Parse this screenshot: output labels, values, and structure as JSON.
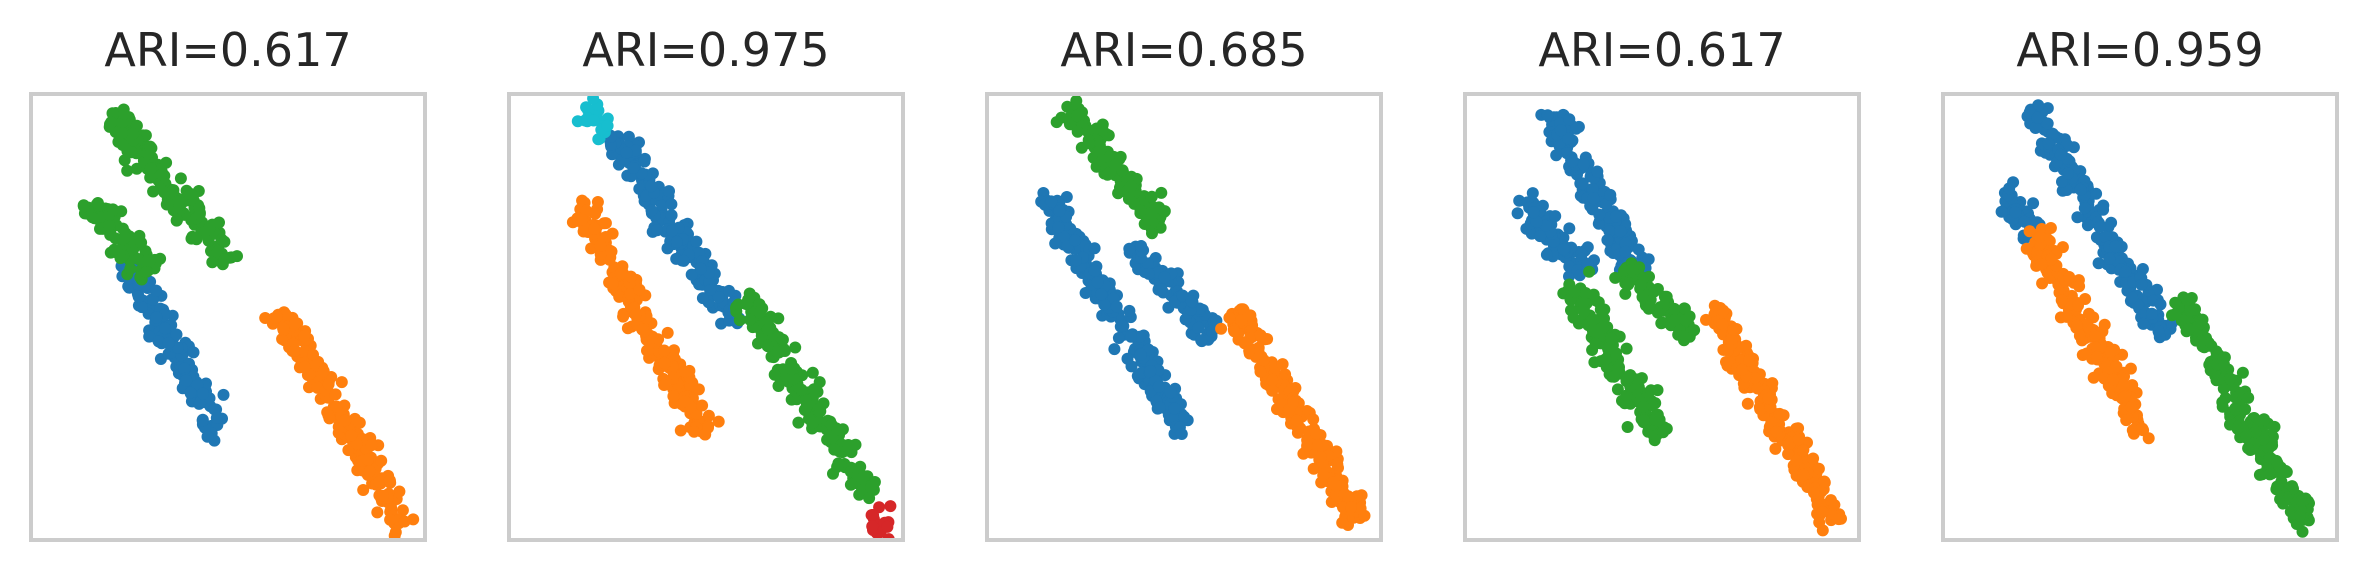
{
  "chart_data": [
    {
      "type": "scatter",
      "title": "ARI=0.617",
      "xlabel": "",
      "ylabel": "",
      "xlim": [
        0,
        1
      ],
      "ylim": [
        0,
        1
      ],
      "grid": false,
      "legend": "none",
      "ticks": "none",
      "series": [
        {
          "color": "#1f77b4",
          "segments": [
            [
              0.24,
              0.62,
              0.48,
              0.22
            ]
          ]
        },
        {
          "color": "#ff7f0e",
          "segments": [
            [
              0.63,
              0.52,
              0.96,
              0.02
            ]
          ]
        },
        {
          "color": "#2ca02c",
          "segments": [
            [
              0.2,
              0.97,
              0.5,
              0.62
            ],
            [
              0.14,
              0.77,
              0.3,
              0.6
            ]
          ]
        }
      ]
    },
    {
      "type": "scatter",
      "title": "ARI=0.975",
      "xlabel": "",
      "ylabel": "",
      "xlim": [
        0,
        1
      ],
      "ylim": [
        0,
        1
      ],
      "grid": false,
      "legend": "none",
      "ticks": "none",
      "series": [
        {
          "color": "#1f77b4",
          "segments": [
            [
              0.26,
              0.92,
              0.58,
              0.48
            ]
          ]
        },
        {
          "color": "#ff7f0e",
          "segments": [
            [
              0.17,
              0.76,
              0.5,
              0.23
            ]
          ]
        },
        {
          "color": "#2ca02c",
          "segments": [
            [
              0.6,
              0.54,
              0.93,
              0.09
            ]
          ]
        },
        {
          "color": "#d62728",
          "segments": [
            [
              0.93,
              0.03,
              0.98,
              0.02
            ]
          ]
        },
        {
          "color": "#17becf",
          "segments": [
            [
              0.18,
              0.97,
              0.24,
              0.94
            ]
          ]
        }
      ]
    },
    {
      "type": "scatter",
      "title": "ARI=0.685",
      "xlabel": "",
      "ylabel": "",
      "xlim": [
        0,
        1
      ],
      "ylim": [
        0,
        1
      ],
      "grid": false,
      "legend": "none",
      "ticks": "none",
      "series": [
        {
          "color": "#1f77b4",
          "segments": [
            [
              0.14,
              0.78,
              0.5,
              0.24
            ],
            [
              0.36,
              0.66,
              0.58,
              0.46
            ]
          ]
        },
        {
          "color": "#ff7f0e",
          "segments": [
            [
              0.63,
              0.52,
              0.96,
              0.02
            ]
          ]
        },
        {
          "color": "#2ca02c",
          "segments": [
            [
              0.2,
              0.98,
              0.44,
              0.71
            ]
          ]
        }
      ]
    },
    {
      "type": "scatter",
      "title": "ARI=0.617",
      "xlabel": "",
      "ylabel": "",
      "xlim": [
        0,
        1
      ],
      "ylim": [
        0,
        1
      ],
      "grid": false,
      "legend": "none",
      "ticks": "none",
      "series": [
        {
          "color": "#1f77b4",
          "segments": [
            [
              0.2,
              0.97,
              0.44,
              0.6
            ],
            [
              0.14,
              0.77,
              0.3,
              0.6
            ]
          ]
        },
        {
          "color": "#ff7f0e",
          "segments": [
            [
              0.63,
              0.52,
              0.96,
              0.02
            ]
          ]
        },
        {
          "color": "#2ca02c",
          "segments": [
            [
              0.26,
              0.58,
              0.5,
              0.22
            ],
            [
              0.4,
              0.61,
              0.58,
              0.46
            ]
          ]
        }
      ]
    },
    {
      "type": "scatter",
      "title": "ARI=0.959",
      "xlabel": "",
      "ylabel": "",
      "xlim": [
        0,
        1
      ],
      "ylim": [
        0,
        1
      ],
      "grid": false,
      "legend": "none",
      "ticks": "none",
      "series": [
        {
          "color": "#1f77b4",
          "segments": [
            [
              0.22,
              0.98,
              0.56,
              0.46
            ],
            [
              0.14,
              0.78,
              0.24,
              0.7
            ]
          ]
        },
        {
          "color": "#ff7f0e",
          "segments": [
            [
              0.22,
              0.7,
              0.52,
              0.22
            ]
          ]
        },
        {
          "color": "#2ca02c",
          "segments": [
            [
              0.6,
              0.54,
              0.94,
              0.02
            ]
          ]
        }
      ]
    }
  ]
}
